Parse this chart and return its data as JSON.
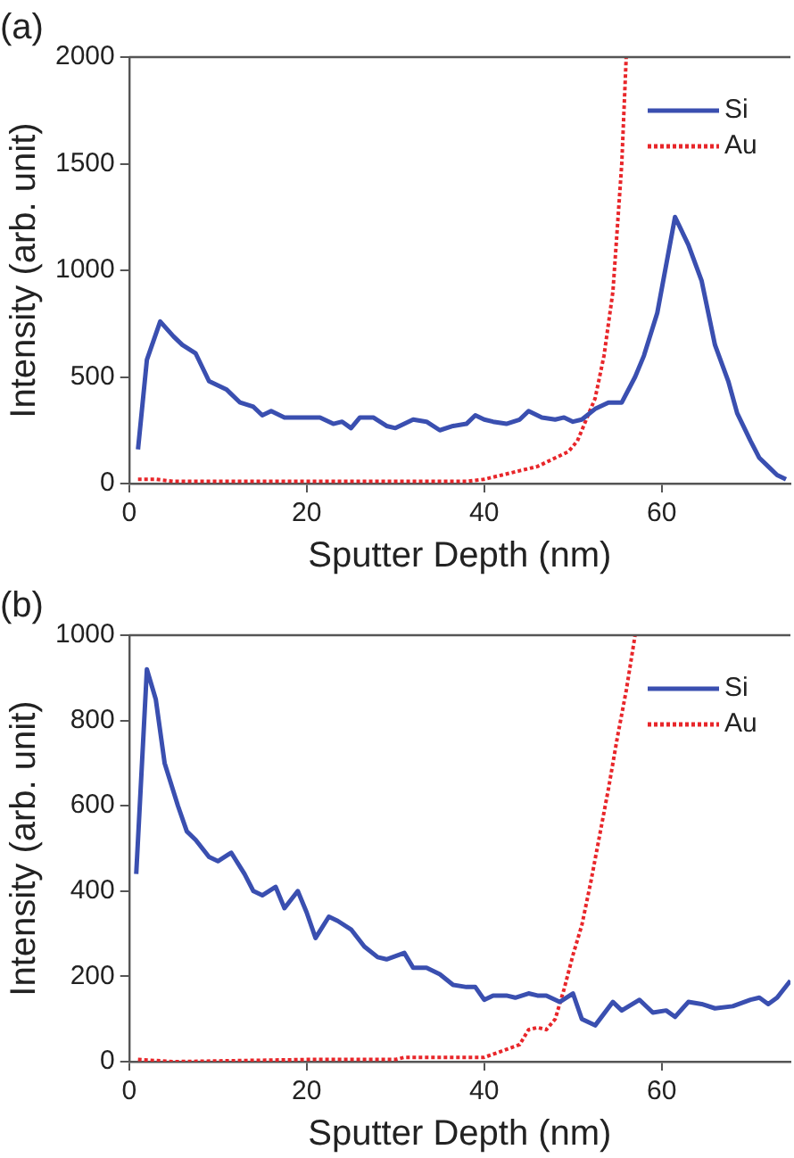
{
  "chart_data": [
    {
      "type": "line",
      "title": "(a)",
      "xlabel": "Sputter Depth (nm)",
      "ylabel": "Intensity (arb. unit)",
      "xlim": [
        0,
        74.5
      ],
      "xticks": [
        0,
        20,
        40,
        60
      ],
      "ylim": [
        0,
        2000
      ],
      "yticks": [
        0,
        500,
        1000,
        1500,
        2000
      ],
      "grid": false,
      "legend": "top right",
      "marker": "none",
      "series": [
        {
          "name": "Si",
          "color": "#3a4fb0",
          "line_style": "solid",
          "x": [
            1,
            2,
            3.5,
            5,
            6,
            7.5,
            9,
            10,
            11,
            12.5,
            14,
            15,
            16,
            17.5,
            20,
            21.5,
            23,
            24,
            25,
            26,
            27.5,
            29,
            30,
            32,
            33.5,
            35,
            36.5,
            38,
            39,
            40,
            41,
            42.5,
            44,
            45,
            46.5,
            48,
            49,
            50,
            51,
            52.5,
            54,
            55.5,
            57,
            58,
            59.5,
            61.5,
            63,
            64.5,
            66,
            67.5,
            68.5,
            70,
            71,
            72,
            73,
            74
          ],
          "values": [
            160,
            580,
            760,
            690,
            650,
            610,
            480,
            460,
            440,
            380,
            360,
            320,
            340,
            310,
            310,
            310,
            280,
            290,
            260,
            310,
            310,
            270,
            260,
            300,
            290,
            250,
            270,
            280,
            320,
            300,
            290,
            280,
            300,
            340,
            310,
            300,
            310,
            290,
            300,
            350,
            380,
            380,
            500,
            600,
            800,
            1250,
            1120,
            950,
            650,
            480,
            330,
            200,
            120,
            80,
            40,
            20
          ]
        },
        {
          "name": "Au",
          "color": "#e8262a",
          "line_style": "dotted",
          "x": [
            1,
            3,
            5,
            10,
            20,
            30,
            38,
            40,
            42,
            44,
            46,
            48,
            49.5,
            50.5,
            51.5,
            52.5,
            53.5,
            54.5,
            55,
            55.5,
            56
          ],
          "values": [
            20,
            20,
            10,
            10,
            10,
            10,
            10,
            20,
            40,
            60,
            80,
            120,
            150,
            200,
            300,
            400,
            600,
            900,
            1200,
            1500,
            2000
          ]
        }
      ]
    },
    {
      "type": "line",
      "title": "(b)",
      "xlabel": "Sputter Depth (nm)",
      "ylabel": "Intensity (arb. unit)",
      "xlim": [
        0,
        74.5
      ],
      "xticks": [
        0,
        20,
        40,
        60
      ],
      "ylim": [
        0,
        1000
      ],
      "yticks": [
        0,
        200,
        400,
        600,
        800,
        1000
      ],
      "grid": false,
      "legend": "top right",
      "marker": "none",
      "series": [
        {
          "name": "Si",
          "color": "#3a4fb0",
          "line_style": "solid",
          "x": [
            0.8,
            2,
            3,
            4,
            5.5,
            6.5,
            7.5,
            9,
            10,
            11.5,
            13,
            14,
            15,
            16.5,
            17.5,
            19,
            20,
            21,
            22.5,
            23.5,
            25,
            26.5,
            28,
            29,
            31,
            32,
            33.5,
            35,
            36.5,
            38,
            39,
            40,
            41,
            42.5,
            43.5,
            45,
            46,
            47,
            48.5,
            50,
            51,
            52.5,
            54.5,
            55.5,
            57.5,
            59,
            60.5,
            61.5,
            63,
            64.5,
            66,
            68,
            70,
            71,
            72,
            73,
            74.5
          ],
          "values": [
            440,
            920,
            850,
            700,
            600,
            540,
            520,
            480,
            470,
            490,
            440,
            400,
            390,
            410,
            360,
            400,
            350,
            290,
            340,
            330,
            310,
            270,
            245,
            240,
            255,
            220,
            220,
            205,
            180,
            175,
            175,
            145,
            155,
            155,
            150,
            160,
            155,
            155,
            140,
            160,
            100,
            85,
            140,
            120,
            145,
            115,
            120,
            105,
            140,
            135,
            125,
            130,
            145,
            150,
            135,
            150,
            190
          ]
        },
        {
          "name": "Au",
          "color": "#e8262a",
          "line_style": "dotted",
          "x": [
            1,
            5,
            20,
            25,
            30,
            31,
            35,
            40,
            42,
            44,
            45,
            46,
            47,
            48,
            49,
            50,
            51,
            52,
            53,
            54,
            55,
            56,
            57
          ],
          "values": [
            5,
            0,
            5,
            5,
            5,
            10,
            10,
            10,
            25,
            40,
            75,
            80,
            75,
            100,
            170,
            250,
            320,
            420,
            530,
            640,
            760,
            870,
            1000
          ]
        }
      ]
    }
  ]
}
